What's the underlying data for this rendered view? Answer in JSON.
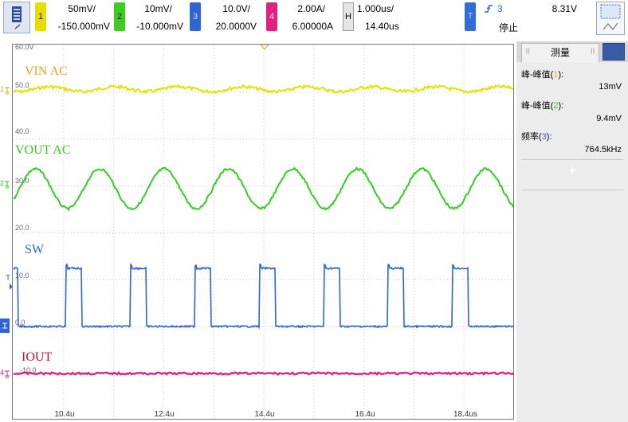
{
  "colors": {
    "ch1": "#e8e000",
    "ch2": "#33cc22",
    "ch3": "#2e64d6",
    "ch4": "#e0217f",
    "ch1_label": "#f0a020",
    "ch3_label": "#2a66c8",
    "ch4_label": "#c8102e"
  },
  "channels": [
    {
      "num": "1",
      "scale": "50mV/",
      "offset": "-150.000mV"
    },
    {
      "num": "2",
      "scale": "10mV/",
      "offset": "-10.000mV"
    },
    {
      "num": "3",
      "scale": "10.0V/",
      "offset": "20.0000V"
    },
    {
      "num": "4",
      "scale": "2.00A/",
      "offset": "6.00000A"
    }
  ],
  "horizontal": {
    "label": "H",
    "scale": "1.000us/",
    "position": "14.40us"
  },
  "trigger": {
    "label": "T",
    "slope_icon": "rising-edge-icon",
    "source": "3",
    "level": "8.31V",
    "status": "停止"
  },
  "plot": {
    "y_labels": [
      "60.0V",
      "50.0",
      "40.0",
      "30.0",
      "20.0",
      "10.0",
      "0.0",
      "-10.0"
    ],
    "x_labels": [
      "10.4u",
      "12.4u",
      "14.4u",
      "16.4u",
      "18.4us"
    ],
    "traces": [
      {
        "name": "VIN AC"
      },
      {
        "name": "VOUT AC"
      },
      {
        "name": "SW"
      },
      {
        "name": "IOUT"
      }
    ]
  },
  "measurements": {
    "tab_label": "测量",
    "add_label": "+",
    "items": [
      {
        "label_prefix": "峰-峰值(",
        "channel": "1",
        "label_suffix": "):",
        "value": "13mV"
      },
      {
        "label_prefix": "峰-峰值(",
        "channel": "2",
        "label_suffix": "):",
        "value": "9.4mV"
      },
      {
        "label_prefix": "频率(",
        "channel": "3",
        "label_suffix": "):",
        "value": "764.5kHz"
      }
    ]
  }
}
